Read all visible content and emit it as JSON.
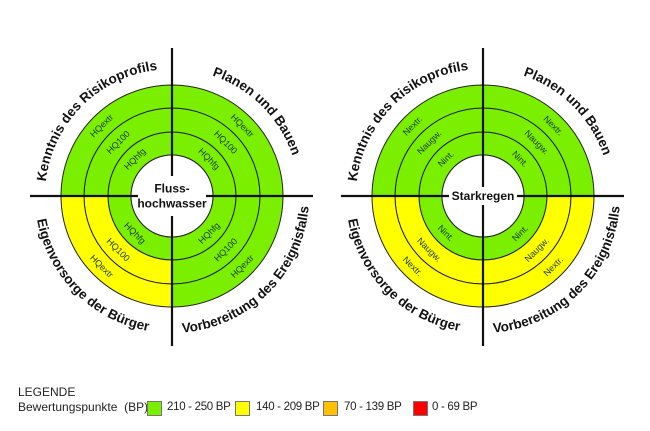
{
  "colors": {
    "green": "#7af000",
    "yellow": "#ffff00",
    "orange": "#ffc000",
    "red": "#ff0000"
  },
  "quadrant_titles": {
    "tl": "Kenntnis des Risikoprofils",
    "tr": "Planen und Bauen",
    "bl": "Eigenvorsorge der Bürger",
    "br": "Vorbereitung des Ereignisfalls"
  },
  "diagrams": [
    {
      "center": "Fluss-\nhochwasser",
      "center_lines": [
        "Fluss-",
        "hochwasser"
      ],
      "rings": [
        "HQhfg",
        "HQ100",
        "HQextr"
      ],
      "ratings": {
        "tl": [
          "green",
          "green",
          "green"
        ],
        "tr": [
          "green",
          "green",
          "green"
        ],
        "bl": [
          "green",
          "yellow",
          "yellow"
        ],
        "br": [
          "green",
          "green",
          "green"
        ]
      }
    },
    {
      "center": "Starkregen",
      "center_lines": [
        "Starkregen"
      ],
      "rings": [
        "Nint.",
        "Naugw.",
        "Nextr."
      ],
      "ratings": {
        "tl": [
          "green",
          "green",
          "green"
        ],
        "tr": [
          "green",
          "green",
          "green"
        ],
        "bl": [
          "green",
          "yellow",
          "yellow"
        ],
        "br": [
          "green",
          "yellow",
          "yellow"
        ]
      }
    }
  ],
  "legend": {
    "title": "LEGENDE",
    "subtitle": "Bewertungspunkte  (BP)",
    "items": [
      {
        "label": "210 - 250 BP",
        "color": "green"
      },
      {
        "label": "140 - 209 BP",
        "color": "yellow"
      },
      {
        "label": "70 - 139 BP",
        "color": "orange"
      },
      {
        "label": "0 - 69 BP",
        "color": "red"
      }
    ]
  }
}
